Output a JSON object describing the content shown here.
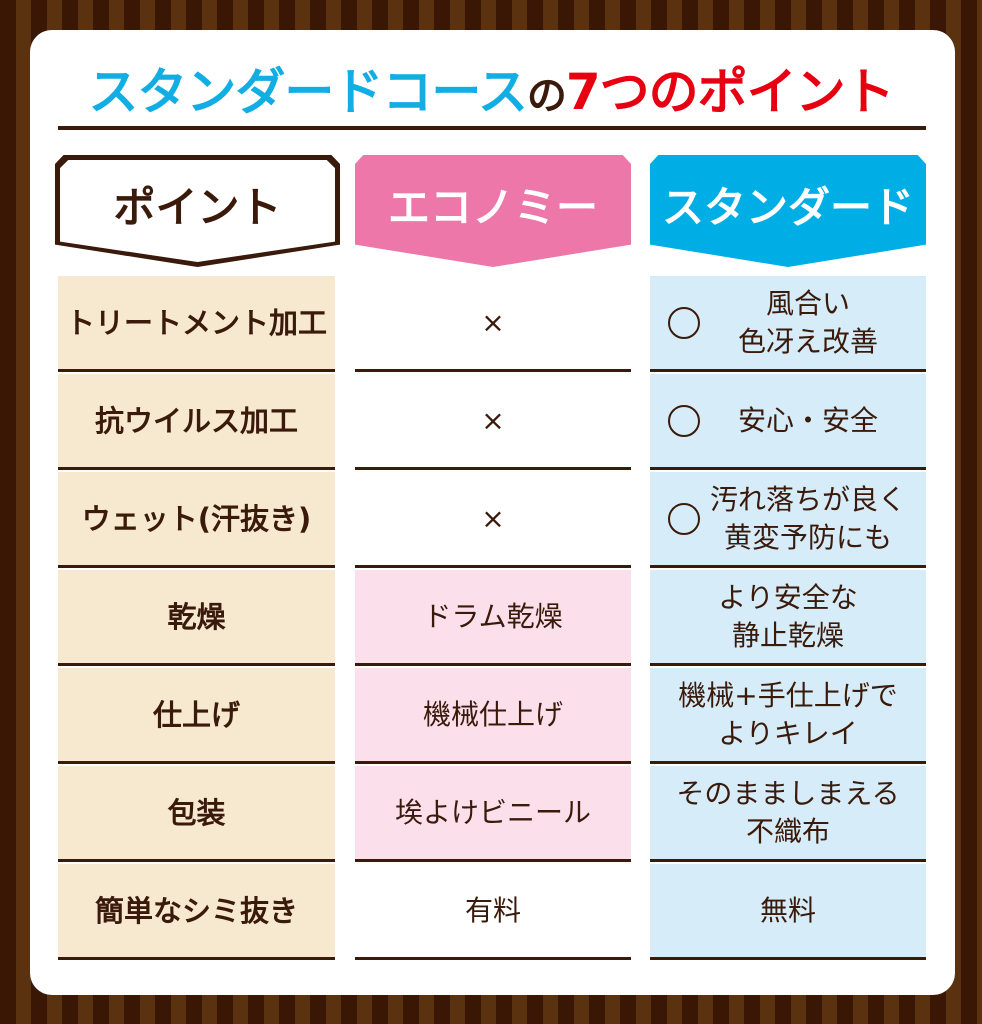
{
  "title": {
    "part1": "スタンダードコース",
    "part2": "の",
    "part3": "7つのポイント"
  },
  "headers": {
    "point": "ポイント",
    "economy": "エコノミー",
    "standard": "スタンダード"
  },
  "colors": {
    "economy": "#ec77a8",
    "standard": "#00aee6",
    "title_blue": "#12aee3",
    "title_red": "#e60012",
    "brown": "#3a1a0a"
  },
  "rows": [
    {
      "point": "トリートメント加工",
      "economy": "×",
      "standard_mark": "○",
      "standard": "風合い\n色冴え改善"
    },
    {
      "point": "抗ウイルス加工",
      "economy": "×",
      "standard_mark": "○",
      "standard": "安心・安全"
    },
    {
      "point": "ウェット(汗抜き)",
      "economy": "×",
      "standard_mark": "○",
      "standard": "汚れ落ちが良く\n黄変予防にも"
    },
    {
      "point": "乾燥",
      "economy": "ドラム乾燥",
      "standard": "より安全な\n静止乾燥"
    },
    {
      "point": "仕上げ",
      "economy": "機械仕上げ",
      "standard": "機械+手仕上げで\nよりキレイ"
    },
    {
      "point": "包装",
      "economy": "埃よけビニール",
      "standard": "そのまましまえる\n不織布"
    },
    {
      "point": "簡単なシミ抜き",
      "economy": "有料",
      "standard": "無料"
    }
  ]
}
